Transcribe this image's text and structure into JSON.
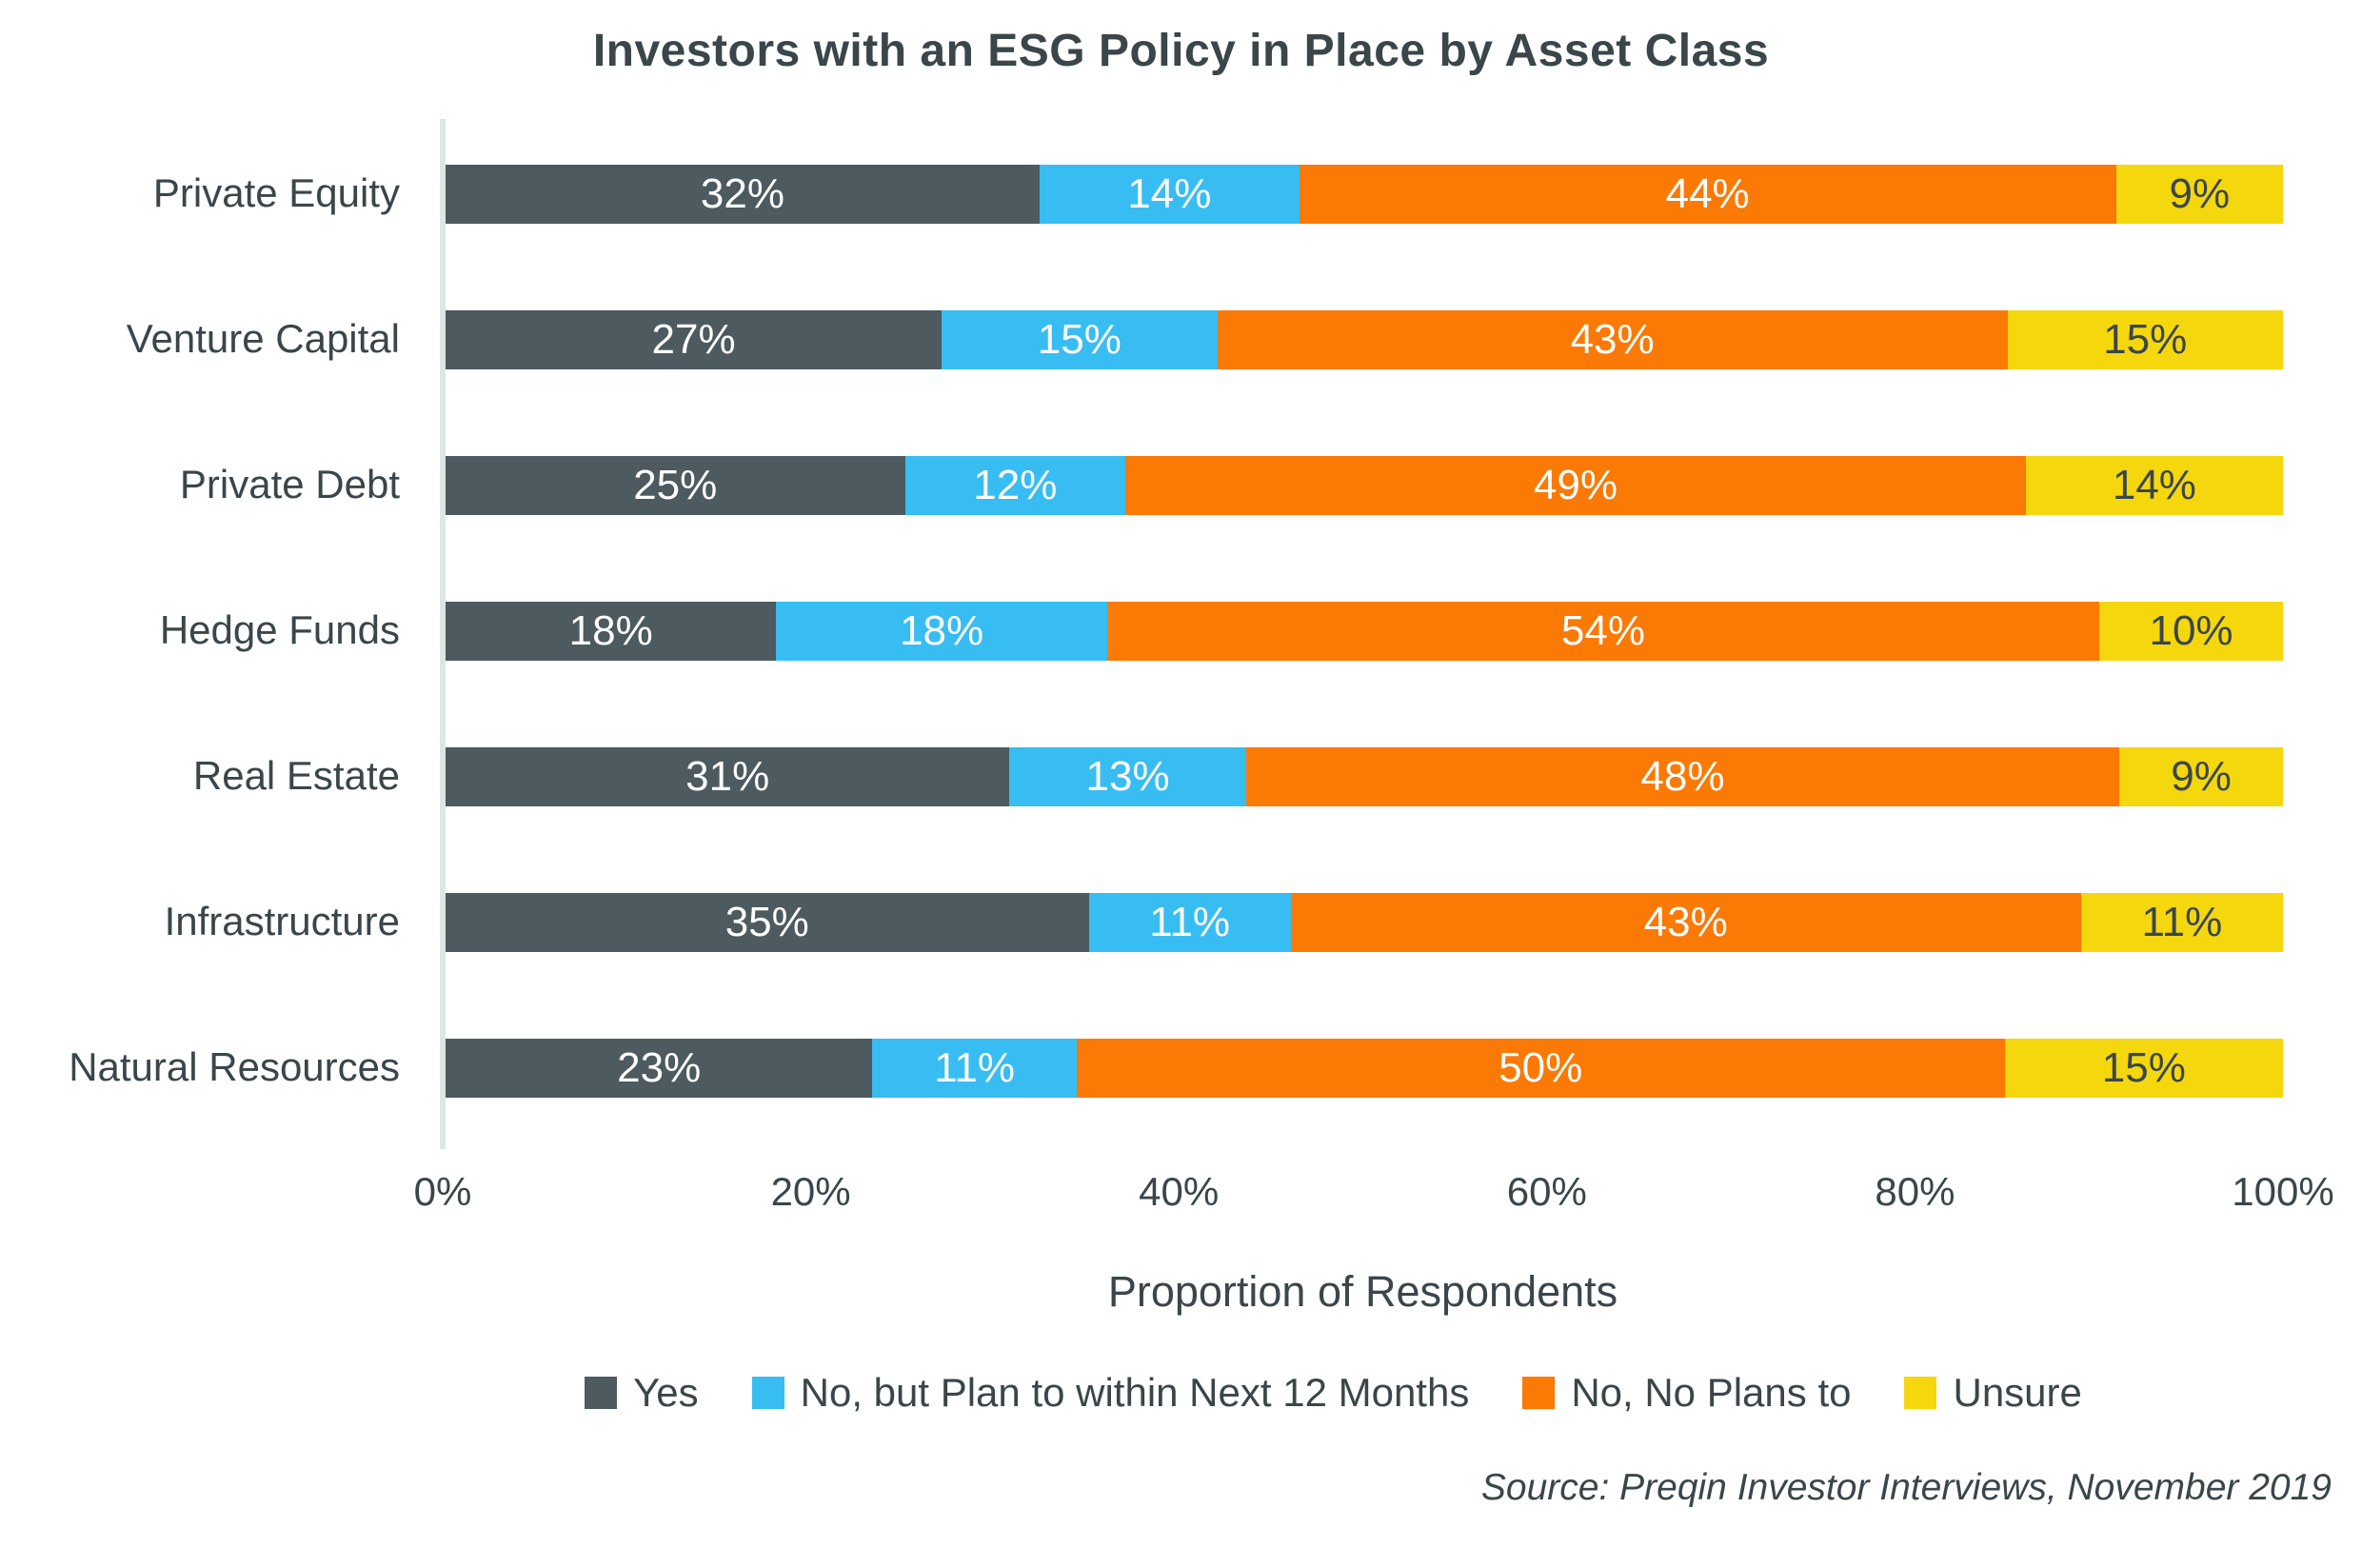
{
  "title": "Investors with an ESG Policy in Place by Asset Class",
  "chart_data": {
    "type": "bar",
    "orientation": "horizontal",
    "stacked": true,
    "categories": [
      "Private Equity",
      "Venture Capital",
      "Private Debt",
      "Hedge Funds",
      "Real Estate",
      "Infrastructure",
      "Natural Resources"
    ],
    "series": [
      {
        "name": "Yes",
        "color": "#4D5A5F",
        "label_color": "#FFFFFF",
        "values": [
          32,
          27,
          25,
          18,
          31,
          35,
          23
        ]
      },
      {
        "name": "No, but Plan to within Next 12 Months",
        "color": "#38BDF2",
        "label_color": "#FFFFFF",
        "values": [
          14,
          15,
          12,
          18,
          13,
          11,
          11
        ]
      },
      {
        "name": "No, No Plans to",
        "color": "#FB7905",
        "label_color": "#FFFFFF",
        "values": [
          44,
          43,
          49,
          54,
          48,
          43,
          50
        ]
      },
      {
        "name": "Unsure",
        "color": "#F5D70E",
        "label_color": "#3A4649",
        "values": [
          9,
          15,
          14,
          10,
          9,
          11,
          15
        ]
      }
    ],
    "value_suffix": "%",
    "xlabel": "Proportion of Respondents",
    "x_ticks": [
      "0%",
      "20%",
      "40%",
      "60%",
      "80%",
      "100%"
    ],
    "xlim": [
      0,
      100
    ],
    "grid": false,
    "legend_position": "bottom",
    "source": "Source: Preqin Investor Interviews, November 2019"
  },
  "colors": {
    "text": "#3A4649",
    "axis_line": "#DCE7E5",
    "background": "#FFFFFF"
  }
}
